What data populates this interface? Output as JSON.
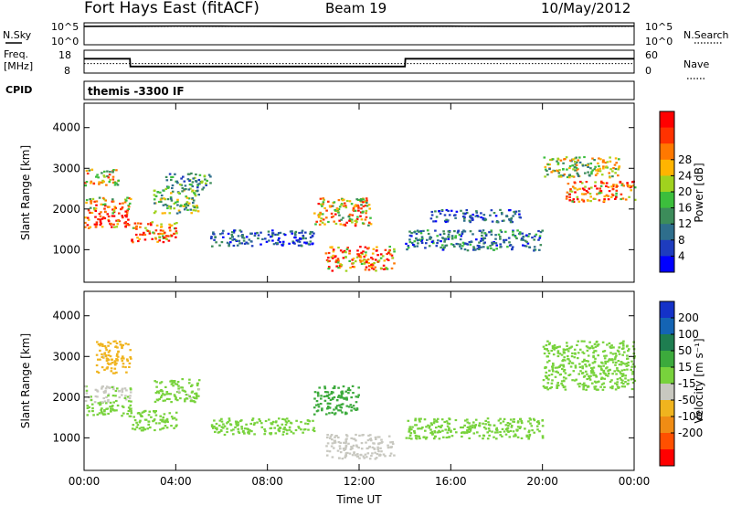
{
  "header": {
    "radar": "Fort Hays East (fitACF)",
    "beam": "Beam 19",
    "date": "10/May/2012"
  },
  "panels": {
    "nsky": {
      "label": "N.Sky",
      "ticks": [
        "10^5",
        "10^0"
      ]
    },
    "nsearch": {
      "label": "N.Search",
      "ticks": [
        "10^5",
        "10^0"
      ]
    },
    "freq": {
      "label_line1": "Freq.",
      "label_line2": "[MHz]",
      "ticks": [
        "18",
        "8"
      ]
    },
    "nave": {
      "label": "Nave",
      "ticks": [
        "60",
        "0"
      ]
    },
    "cpid": {
      "label": "CPID",
      "value": "themis -3300 IF"
    }
  },
  "colors": {
    "power": [
      "#0000ff",
      "#1e3cbe",
      "#2e6e8c",
      "#3c8c5a",
      "#3cbe3c",
      "#a0d21e",
      "#ffb400",
      "#ff7800",
      "#ff3200",
      "#ff0000"
    ],
    "velocity": [
      "#1432c8",
      "#1464b4",
      "#1e7d50",
      "#3caa3c",
      "#78d23c",
      "#c8c8c0",
      "#f0b41e",
      "#f08c14",
      "#ff5000",
      "#ff0000"
    ]
  },
  "chart_data": [
    {
      "type": "line",
      "name": "N.Sky / N.Search",
      "x": [
        "00:00",
        "02:00",
        "04:00",
        "06:00",
        "08:00",
        "10:00",
        "12:00",
        "14:00",
        "16:00",
        "18:00",
        "20:00",
        "22:00",
        "24:00"
      ],
      "series": [
        {
          "name": "N.Sky",
          "values": [
            36000.0,
            38000.0,
            42000.0,
            39000.0,
            37000.0,
            36000.0,
            38000.0,
            40000.0,
            39000.0,
            38000.0,
            37000.0,
            39000.0,
            41000.0
          ]
        },
        {
          "name": "N.Search",
          "values": [
            32000.0,
            34000.0,
            36000.0,
            34000.0,
            33000.0,
            32000.0,
            33000.0,
            35000.0,
            34000.0,
            33000.0,
            33000.0,
            34000.0,
            36000.0
          ]
        }
      ],
      "ylim": [
        1,
        100000
      ],
      "yscale": "log"
    },
    {
      "type": "line",
      "name": "Freq / Nave",
      "x": [
        "00:00",
        "02:00",
        "02:01",
        "14:00",
        "14:01",
        "24:00"
      ],
      "series": [
        {
          "name": "Freq. [MHz]",
          "values": [
            14.5,
            14.5,
            10.5,
            10.5,
            14.5,
            14.5
          ]
        },
        {
          "name": "Nave",
          "values": [
            24,
            24,
            24,
            24,
            24,
            24
          ]
        }
      ],
      "ylim": [
        8,
        18
      ],
      "y2lim": [
        0,
        60
      ]
    },
    {
      "type": "heatmap",
      "name": "Power",
      "xlabel": "Time UT",
      "ylabel": "Slant Range [km]",
      "xlim": [
        0,
        24
      ],
      "ylim": [
        200,
        4600
      ],
      "x_ticks": [
        "00:00",
        "04:00",
        "08:00",
        "12:00",
        "16:00",
        "20:00",
        "00:00"
      ],
      "y_ticks": [
        1000,
        2000,
        3000,
        4000
      ],
      "colorbar": {
        "label": "Power [dB]",
        "ticks": [
          4,
          8,
          12,
          16,
          20,
          24,
          28
        ],
        "range": [
          0,
          30
        ]
      },
      "bands": [
        {
          "t": [
            0.0,
            2.0
          ],
          "r": [
            1550,
            1900
          ],
          "value": 28
        },
        {
          "t": [
            0.0,
            2.0
          ],
          "r": [
            1900,
            2300
          ],
          "value": 20
        },
        {
          "t": [
            0.0,
            1.5
          ],
          "r": [
            2600,
            3000
          ],
          "value": 18
        },
        {
          "t": [
            2.0,
            4.0
          ],
          "r": [
            1200,
            1700
          ],
          "value": 24
        },
        {
          "t": [
            3.0,
            5.0
          ],
          "r": [
            1900,
            2500
          ],
          "value": 14
        },
        {
          "t": [
            3.5,
            5.5
          ],
          "r": [
            2500,
            2900
          ],
          "value": 10
        },
        {
          "t": [
            5.5,
            10.0
          ],
          "r": [
            1100,
            1500
          ],
          "value": 6
        },
        {
          "t": [
            10.0,
            12.5
          ],
          "r": [
            1600,
            2300
          ],
          "value": 20
        },
        {
          "t": [
            10.5,
            13.5
          ],
          "r": [
            500,
            1100
          ],
          "value": 22
        },
        {
          "t": [
            14.0,
            20.0
          ],
          "r": [
            1000,
            1500
          ],
          "value": 8
        },
        {
          "t": [
            15.0,
            19.0
          ],
          "r": [
            1700,
            2000
          ],
          "value": 6
        },
        {
          "t": [
            20.0,
            23.5
          ],
          "r": [
            2800,
            3300
          ],
          "value": 16
        },
        {
          "t": [
            21.0,
            24.0
          ],
          "r": [
            2200,
            2700
          ],
          "value": 22
        }
      ]
    },
    {
      "type": "heatmap",
      "name": "Velocity",
      "xlabel": "Time UT",
      "ylabel": "Slant Range [km]",
      "xlim": [
        0,
        24
      ],
      "ylim": [
        200,
        4600
      ],
      "x_ticks": [
        "00:00",
        "04:00",
        "08:00",
        "12:00",
        "16:00",
        "20:00",
        "00:00"
      ],
      "y_ticks": [
        1000,
        2000,
        3000,
        4000
      ],
      "colorbar": {
        "label": "Velocity [m s⁻¹]",
        "ticks": [
          200,
          100,
          50,
          15,
          -15,
          -50,
          -100,
          -200
        ],
        "range": [
          -250,
          250
        ]
      },
      "bands": [
        {
          "t": [
            0.0,
            2.0
          ],
          "r": [
            1550,
            1900
          ],
          "value": 0
        },
        {
          "t": [
            0.0,
            2.0
          ],
          "r": [
            1900,
            2300
          ],
          "value": -20
        },
        {
          "t": [
            0.5,
            2.0
          ],
          "r": [
            2600,
            3400
          ],
          "value": -70
        },
        {
          "t": [
            2.0,
            4.0
          ],
          "r": [
            1200,
            1700
          ],
          "value": 0
        },
        {
          "t": [
            3.0,
            5.0
          ],
          "r": [
            1900,
            2500
          ],
          "value": -10
        },
        {
          "t": [
            5.5,
            10.0
          ],
          "r": [
            1100,
            1500
          ],
          "value": -5
        },
        {
          "t": [
            10.0,
            12.0
          ],
          "r": [
            1600,
            2300
          ],
          "value": 30
        },
        {
          "t": [
            10.5,
            13.5
          ],
          "r": [
            500,
            1100
          ],
          "value": -30
        },
        {
          "t": [
            14.0,
            20.0
          ],
          "r": [
            1000,
            1500
          ],
          "value": 0
        },
        {
          "t": [
            20.0,
            24.0
          ],
          "r": [
            2200,
            3400
          ],
          "value": 5
        }
      ]
    }
  ]
}
